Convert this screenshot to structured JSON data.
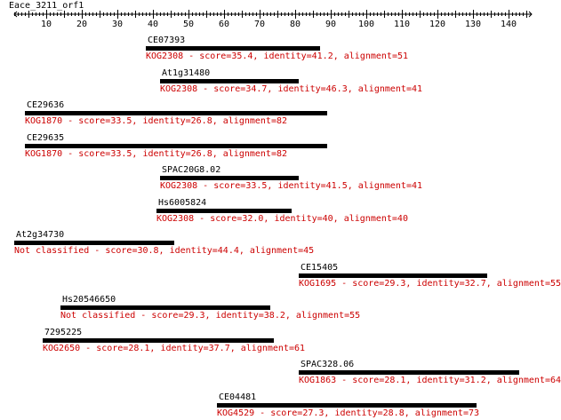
{
  "query": {
    "name": "Eace_3211_orf1",
    "length": 145
  },
  "ruler": {
    "min": 1,
    "max": 145,
    "major_ticks": [
      10,
      20,
      30,
      40,
      50,
      60,
      70,
      80,
      90,
      100,
      110,
      120,
      130,
      140
    ]
  },
  "colors": {
    "bar": "#000000",
    "description": "#cc0000",
    "axis": "#000000"
  },
  "hits": [
    {
      "name": "CE07393",
      "start": 38,
      "end": 87,
      "description": "KOG2308 - score=35.4, identity=41.2, alignment=51"
    },
    {
      "name": "At1g31480",
      "start": 42,
      "end": 81,
      "description": "KOG2308 - score=34.7, identity=46.3, alignment=41"
    },
    {
      "name": "CE29636",
      "start": 4,
      "end": 89,
      "description": "KOG1870 - score=33.5, identity=26.8, alignment=82"
    },
    {
      "name": "CE29635",
      "start": 4,
      "end": 89,
      "description": "KOG1870 - score=33.5, identity=26.8, alignment=82"
    },
    {
      "name": "SPAC20G8.02",
      "start": 42,
      "end": 81,
      "description": "KOG2308 - score=33.5, identity=41.5, alignment=41"
    },
    {
      "name": "Hs6005824",
      "start": 41,
      "end": 79,
      "description": "KOG2308 - score=32.0, identity=40, alignment=40"
    },
    {
      "name": "At2g34730",
      "start": 1,
      "end": 46,
      "description": "Not classified - score=30.8, identity=44.4, alignment=45"
    },
    {
      "name": "CE15405",
      "start": 81,
      "end": 134,
      "description": "KOG1695 - score=29.3, identity=32.7, alignment=55"
    },
    {
      "name": "Hs20546650",
      "start": 14,
      "end": 73,
      "description": "Not classified - score=29.3, identity=38.2, alignment=55"
    },
    {
      "name": "7295225",
      "start": 9,
      "end": 74,
      "description": "KOG2650 - score=28.1, identity=37.7, alignment=61"
    },
    {
      "name": "SPAC328.06",
      "start": 81,
      "end": 143,
      "description": "KOG1863 - score=28.1, identity=31.2, alignment=64"
    },
    {
      "name": "CE04481",
      "start": 58,
      "end": 131,
      "description": "KOG4529 - score=27.3, identity=28.8, alignment=73"
    }
  ]
}
